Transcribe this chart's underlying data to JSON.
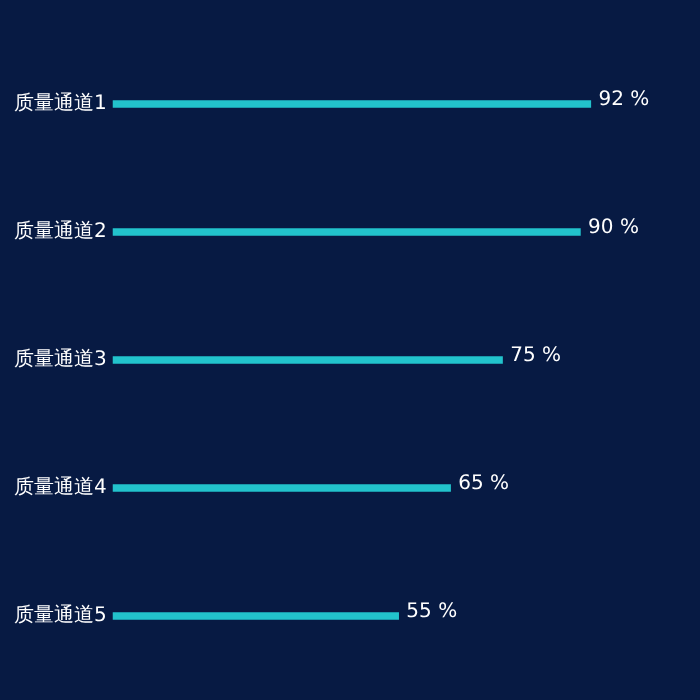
{
  "chart_data": {
    "type": "bar",
    "orientation": "horizontal",
    "categories": [
      "质量通道1",
      "质量通道2",
      "质量通道3",
      "质量通道4",
      "质量通道5"
    ],
    "values": [
      92,
      90,
      75,
      65,
      55
    ],
    "value_labels": [
      "92 %",
      "90 %",
      "75 %",
      "65 %",
      "55 %"
    ],
    "color": "#22c3cc",
    "tick_labels": "y",
    "grid": false,
    "legend": false
  }
}
